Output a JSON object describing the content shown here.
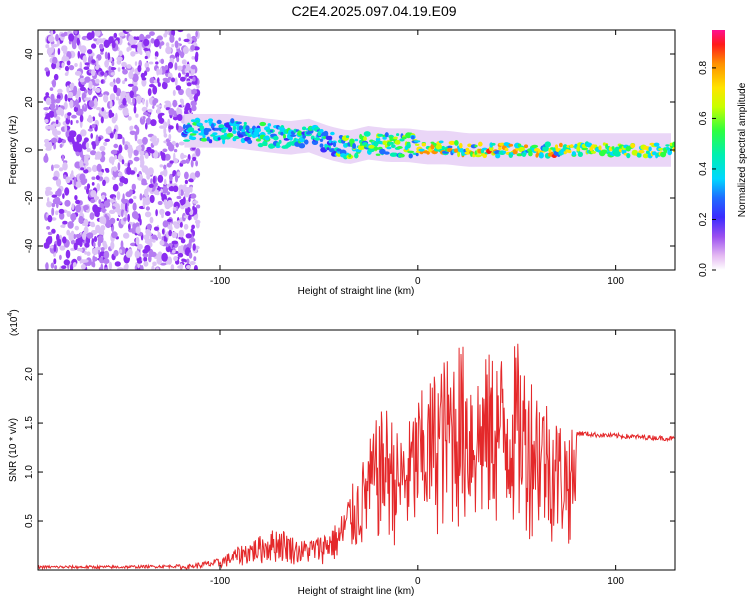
{
  "title": "C2E4.2025.097.04.19.E09",
  "colors": {
    "snr_line": "#e4282a",
    "frame": "#000000"
  },
  "chart_data": [
    {
      "type": "heatmap",
      "name": "spectrogram",
      "xlabel": "Height of straight line (km)",
      "ylabel": "Frequency (Hz)",
      "xlim": [
        -192,
        130
      ],
      "ylim": [
        -50,
        50
      ],
      "xticks": [
        -100,
        0,
        100
      ],
      "yticks": [
        -40,
        -20,
        0,
        20,
        40
      ],
      "noise_region_km": [
        -192,
        -115
      ],
      "signal_track": {
        "x": [
          -115,
          -105,
          -95,
          -85,
          -75,
          -65,
          -55,
          -45,
          -35,
          -25,
          -15,
          -5,
          5,
          15,
          25,
          35,
          45,
          55,
          65,
          75,
          85,
          95,
          105,
          115,
          130
        ],
        "freq": [
          8,
          8,
          8,
          7,
          6,
          5,
          6,
          3,
          1,
          3,
          2,
          2,
          1,
          1,
          0,
          0,
          0,
          0,
          0,
          0,
          0,
          0,
          0,
          0,
          0
        ]
      },
      "colorbar": {
        "label": "Normalized spectral amplitude",
        "range": [
          0.0,
          0.95
        ],
        "ticks": [
          0.0,
          0.2,
          0.4,
          0.6,
          0.8
        ],
        "tick_labels": [
          "0.0",
          "0.2",
          "0.4",
          "0.6",
          "0.8"
        ]
      }
    },
    {
      "type": "line",
      "name": "snr",
      "xlabel": "Height of straight line (km)",
      "ylabel": "SNR (10 * v/v)",
      "scale_label": "(x10",
      "scale_exp": "4",
      "xlim": [
        -192,
        130
      ],
      "ylim": [
        0,
        24500
      ],
      "xticks": [
        -100,
        0,
        100
      ],
      "yticks": [
        5000,
        10000,
        15000,
        20000
      ],
      "ytick_labels": [
        "0.5",
        "1.0",
        "1.5",
        "2.0"
      ],
      "envelope": {
        "x": [
          -192,
          -150,
          -120,
          -100,
          -90,
          -80,
          -70,
          -60,
          -50,
          -40,
          -35,
          -30,
          -25,
          -20,
          -15,
          -10,
          -5,
          0,
          5,
          10,
          15,
          20,
          25,
          30,
          35,
          40,
          45,
          50,
          55,
          60,
          65,
          70,
          75,
          80,
          90,
          100,
          110,
          120,
          130
        ],
        "values": [
          300,
          300,
          400,
          1200,
          2500,
          3500,
          4500,
          3000,
          3500,
          5000,
          8000,
          10000,
          13000,
          16000,
          17000,
          14000,
          15000,
          18000,
          19000,
          21500,
          22000,
          24000,
          22500,
          21000,
          22000,
          23000,
          22000,
          23500,
          21000,
          20000,
          18000,
          16000,
          15000,
          14000,
          13800,
          13700,
          13600,
          13500,
          13400
        ]
      }
    }
  ]
}
